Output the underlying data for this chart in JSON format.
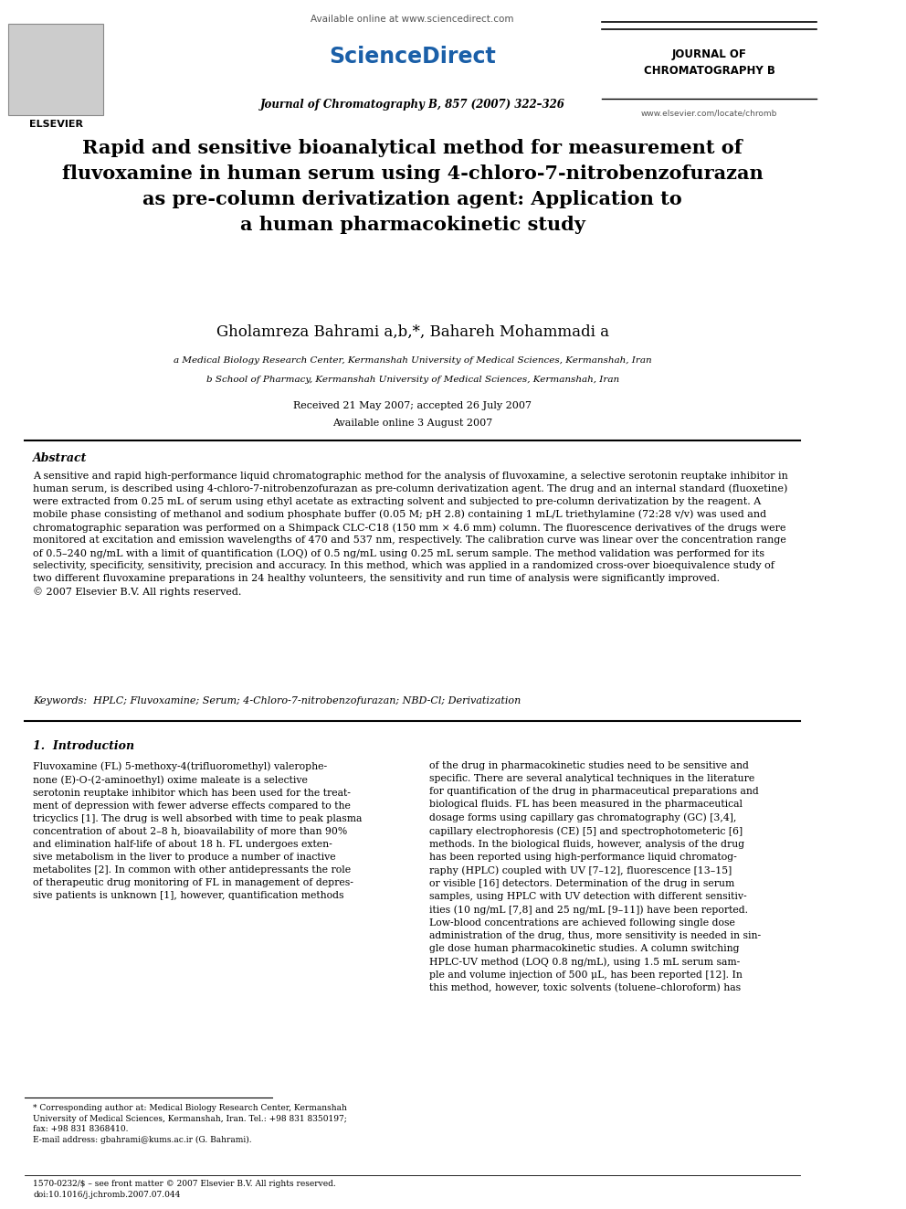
{
  "background_color": "#ffffff",
  "page_width": 9.92,
  "page_height": 13.23,
  "header": {
    "available_online": "Available online at www.sciencedirect.com",
    "sciencedirect": "ScienceDirect",
    "journal_name_right": "JOURNAL OF\nCHROMATOGRAPHY B",
    "journal_issue": "Journal of Chromatography B, 857 (2007) 322–326",
    "website": "www.elsevier.com/locate/chromb",
    "elsevier_text": "ELSEVIER"
  },
  "title": "Rapid and sensitive bioanalytical method for measurement of\nfluvoxamine in human serum using 4-chloro-7-nitrobenzofurazan\nas pre-column derivatization agent: Application to\na human pharmacokinetic study",
  "authors": "Gholamreza Bahrami a,b,*, Bahareh Mohammadi a",
  "affil_a": "a Medical Biology Research Center, Kermanshah University of Medical Sciences, Kermanshah, Iran",
  "affil_b": "b School of Pharmacy, Kermanshah University of Medical Sciences, Kermanshah, Iran",
  "received": "Received 21 May 2007; accepted 26 July 2007",
  "available": "Available online 3 August 2007",
  "abstract_header": "Abstract",
  "abstract_text": "A sensitive and rapid high-performance liquid chromatographic method for the analysis of fluvoxamine, a selective serotonin reuptake inhibitor in\nhuman serum, is described using 4-chloro-7-nitrobenzofurazan as pre-column derivatization agent. The drug and an internal standard (fluoxetine)\nwere extracted from 0.25 mL of serum using ethyl acetate as extracting solvent and subjected to pre-column derivatization by the reagent. A\nmobile phase consisting of methanol and sodium phosphate buffer (0.05 M; pH 2.8) containing 1 mL/L triethylamine (72:28 v/v) was used and\nchromatographic separation was performed on a Shimpack CLC-C18 (150 mm × 4.6 mm) column. The fluorescence derivatives of the drugs were\nmonitored at excitation and emission wavelengths of 470 and 537 nm, respectively. The calibration curve was linear over the concentration range\nof 0.5–240 ng/mL with a limit of quantification (LOQ) of 0.5 ng/mL using 0.25 mL serum sample. The method validation was performed for its\nselectivity, specificity, sensitivity, precision and accuracy. In this method, which was applied in a randomized cross-over bioequivalence study of\ntwo different fluvoxamine preparations in 24 healthy volunteers, the sensitivity and run time of analysis were significantly improved.\n© 2007 Elsevier B.V. All rights reserved.",
  "keywords": "Keywords:  HPLC; Fluvoxamine; Serum; 4-Chloro-7-nitrobenzofurazan; NBD-Cl; Derivatization",
  "section1_header": "1.  Introduction",
  "section1_col1": "Fluvoxamine (FL) 5-methoxy-4(trifluoromethyl) valerophe-\nnone (E)-O-(2-aminoethyl) oxime maleate is a selective\nserotonin reuptake inhibitor which has been used for the treat-\nment of depression with fewer adverse effects compared to the\ntricyclics [1]. The drug is well absorbed with time to peak plasma\nconcentration of about 2–8 h, bioavailability of more than 90%\nand elimination half-life of about 18 h. FL undergoes exten-\nsive metabolism in the liver to produce a number of inactive\nmetabolites [2]. In common with other antidepressants the role\nof therapeutic drug monitoring of FL in management of depres-\nsive patients is unknown [1], however, quantification methods",
  "section1_col2": "of the drug in pharmacokinetic studies need to be sensitive and\nspecific. There are several analytical techniques in the literature\nfor quantification of the drug in pharmaceutical preparations and\nbiological fluids. FL has been measured in the pharmaceutical\ndosage forms using capillary gas chromatography (GC) [3,4],\ncapillary electrophoresis (CE) [5] and spectrophotometeric [6]\nmethods. In the biological fluids, however, analysis of the drug\nhas been reported using high-performance liquid chromatog-\nraphy (HPLC) coupled with UV [7–12], fluorescence [13–15]\nor visible [16] detectors. Determination of the drug in serum\nsamples, using HPLC with UV detection with different sensitiv-\nities (10 ng/mL [7,8] and 25 ng/mL [9–11]) have been reported.\nLow-blood concentrations are achieved following single dose\nadministration of the drug, thus, more sensitivity is needed in sin-\ngle dose human pharmacokinetic studies. A column switching\nHPLC-UV method (LOQ 0.8 ng/mL), using 1.5 mL serum sam-\nple and volume injection of 500 μL, has been reported [12]. In\nthis method, however, toxic solvents (toluene–chloroform) has",
  "footnote_star": "* Corresponding author at: Medical Biology Research Center, Kermanshah\nUniversity of Medical Sciences, Kermanshah, Iran. Tel.: +98 831 8350197;\nfax: +98 831 8368410.\nE-mail address: gbahrami@kums.ac.ir (G. Bahrami).",
  "bottom_text": "1570-0232/$ – see front matter © 2007 Elsevier B.V. All rights reserved.\ndoi:10.1016/j.jchromb.2007.07.044"
}
